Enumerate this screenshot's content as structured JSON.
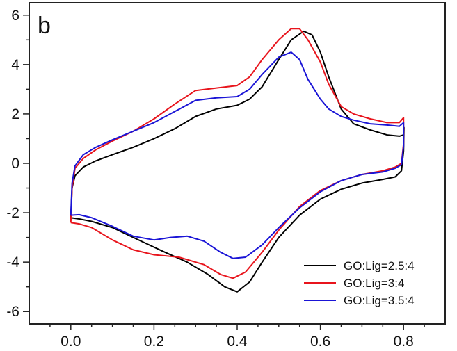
{
  "chart_data": {
    "type": "line",
    "panel_label": "b",
    "title": "",
    "xlabel": "",
    "ylabel": "",
    "xlim": [
      -0.1,
      0.9
    ],
    "ylim": [
      -6.5,
      6.5
    ],
    "x_ticks": [
      0.0,
      0.2,
      0.4,
      0.6,
      0.8
    ],
    "x_tick_labels": [
      "0.0",
      "0.2",
      "0.4",
      "0.6",
      "0.8"
    ],
    "y_ticks": [
      -6,
      -4,
      -2,
      0,
      2,
      4,
      6
    ],
    "y_tick_labels": [
      "-6",
      "-4",
      "-2",
      "0",
      "2",
      "4",
      "6"
    ],
    "grid": false,
    "legend_position": "bottom-right",
    "series": [
      {
        "name": "GO:Lig=2.5:4",
        "color": "#000000",
        "points": [
          [
            0.0,
            -2.2
          ],
          [
            0.003,
            -1.0
          ],
          [
            0.01,
            -0.5
          ],
          [
            0.03,
            -0.15
          ],
          [
            0.06,
            0.1
          ],
          [
            0.1,
            0.35
          ],
          [
            0.15,
            0.65
          ],
          [
            0.2,
            1.0
          ],
          [
            0.25,
            1.4
          ],
          [
            0.3,
            1.9
          ],
          [
            0.35,
            2.2
          ],
          [
            0.4,
            2.35
          ],
          [
            0.43,
            2.6
          ],
          [
            0.46,
            3.1
          ],
          [
            0.5,
            4.2
          ],
          [
            0.53,
            5.0
          ],
          [
            0.56,
            5.35
          ],
          [
            0.58,
            5.2
          ],
          [
            0.6,
            4.5
          ],
          [
            0.62,
            3.5
          ],
          [
            0.65,
            2.2
          ],
          [
            0.68,
            1.6
          ],
          [
            0.72,
            1.35
          ],
          [
            0.76,
            1.15
          ],
          [
            0.79,
            1.1
          ],
          [
            0.8,
            1.15
          ],
          [
            0.801,
            1.45
          ],
          [
            0.8,
            0.5
          ],
          [
            0.795,
            -0.3
          ],
          [
            0.78,
            -0.55
          ],
          [
            0.75,
            -0.65
          ],
          [
            0.7,
            -0.8
          ],
          [
            0.65,
            -1.05
          ],
          [
            0.6,
            -1.45
          ],
          [
            0.55,
            -2.1
          ],
          [
            0.5,
            -3.0
          ],
          [
            0.46,
            -4.0
          ],
          [
            0.43,
            -4.8
          ],
          [
            0.4,
            -5.2
          ],
          [
            0.37,
            -5.0
          ],
          [
            0.33,
            -4.5
          ],
          [
            0.28,
            -4.0
          ],
          [
            0.22,
            -3.55
          ],
          [
            0.15,
            -3.0
          ],
          [
            0.1,
            -2.6
          ],
          [
            0.05,
            -2.35
          ],
          [
            0.02,
            -2.25
          ],
          [
            0.0,
            -2.2
          ]
        ]
      },
      {
        "name": "GO:Lig=3:4",
        "color": "#e8141c",
        "points": [
          [
            0.0,
            -2.4
          ],
          [
            0.003,
            -1.0
          ],
          [
            0.01,
            -0.2
          ],
          [
            0.03,
            0.2
          ],
          [
            0.06,
            0.55
          ],
          [
            0.1,
            0.9
          ],
          [
            0.15,
            1.3
          ],
          [
            0.2,
            1.8
          ],
          [
            0.25,
            2.4
          ],
          [
            0.3,
            2.95
          ],
          [
            0.35,
            3.05
          ],
          [
            0.4,
            3.15
          ],
          [
            0.43,
            3.5
          ],
          [
            0.46,
            4.2
          ],
          [
            0.5,
            5.0
          ],
          [
            0.53,
            5.45
          ],
          [
            0.55,
            5.45
          ],
          [
            0.57,
            5.0
          ],
          [
            0.6,
            4.1
          ],
          [
            0.62,
            3.2
          ],
          [
            0.65,
            2.3
          ],
          [
            0.68,
            2.0
          ],
          [
            0.72,
            1.8
          ],
          [
            0.76,
            1.65
          ],
          [
            0.79,
            1.65
          ],
          [
            0.8,
            1.85
          ],
          [
            0.8,
            0.8
          ],
          [
            0.795,
            0.0
          ],
          [
            0.78,
            -0.15
          ],
          [
            0.75,
            -0.3
          ],
          [
            0.7,
            -0.45
          ],
          [
            0.65,
            -0.7
          ],
          [
            0.6,
            -1.1
          ],
          [
            0.55,
            -1.75
          ],
          [
            0.5,
            -2.7
          ],
          [
            0.46,
            -3.6
          ],
          [
            0.42,
            -4.4
          ],
          [
            0.39,
            -4.65
          ],
          [
            0.36,
            -4.5
          ],
          [
            0.32,
            -4.1
          ],
          [
            0.26,
            -3.8
          ],
          [
            0.2,
            -3.7
          ],
          [
            0.15,
            -3.5
          ],
          [
            0.1,
            -3.1
          ],
          [
            0.05,
            -2.6
          ],
          [
            0.02,
            -2.45
          ],
          [
            0.0,
            -2.4
          ]
        ]
      },
      {
        "name": "GO:Lig=3.5:4",
        "color": "#1a14d6",
        "points": [
          [
            0.0,
            -2.1
          ],
          [
            0.003,
            -0.8
          ],
          [
            0.01,
            -0.1
          ],
          [
            0.03,
            0.35
          ],
          [
            0.06,
            0.65
          ],
          [
            0.1,
            0.95
          ],
          [
            0.15,
            1.3
          ],
          [
            0.2,
            1.65
          ],
          [
            0.25,
            2.1
          ],
          [
            0.3,
            2.55
          ],
          [
            0.35,
            2.65
          ],
          [
            0.4,
            2.7
          ],
          [
            0.43,
            3.0
          ],
          [
            0.46,
            3.6
          ],
          [
            0.5,
            4.3
          ],
          [
            0.53,
            4.5
          ],
          [
            0.55,
            4.2
          ],
          [
            0.57,
            3.4
          ],
          [
            0.6,
            2.6
          ],
          [
            0.62,
            2.2
          ],
          [
            0.65,
            1.9
          ],
          [
            0.68,
            1.75
          ],
          [
            0.72,
            1.6
          ],
          [
            0.76,
            1.55
          ],
          [
            0.79,
            1.5
          ],
          [
            0.8,
            1.65
          ],
          [
            0.8,
            0.7
          ],
          [
            0.795,
            -0.05
          ],
          [
            0.78,
            -0.2
          ],
          [
            0.75,
            -0.35
          ],
          [
            0.7,
            -0.45
          ],
          [
            0.65,
            -0.7
          ],
          [
            0.6,
            -1.15
          ],
          [
            0.55,
            -1.8
          ],
          [
            0.5,
            -2.6
          ],
          [
            0.46,
            -3.3
          ],
          [
            0.42,
            -3.8
          ],
          [
            0.39,
            -3.85
          ],
          [
            0.36,
            -3.6
          ],
          [
            0.32,
            -3.15
          ],
          [
            0.28,
            -2.95
          ],
          [
            0.24,
            -3.0
          ],
          [
            0.2,
            -3.1
          ],
          [
            0.15,
            -2.95
          ],
          [
            0.1,
            -2.55
          ],
          [
            0.05,
            -2.2
          ],
          [
            0.02,
            -2.08
          ],
          [
            0.0,
            -2.1
          ]
        ]
      }
    ]
  }
}
